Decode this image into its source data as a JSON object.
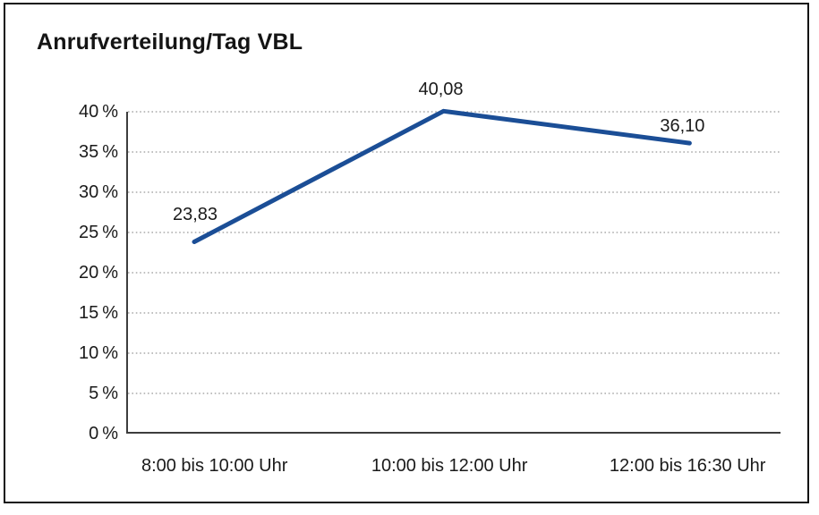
{
  "chart_data": {
    "type": "line",
    "title": "Anrufverteilung/Tag VBL",
    "categories": [
      "8:00 bis 10:00 Uhr",
      "10:00 bis 12:00 Uhr",
      "12:00 bis 16:30 Uhr"
    ],
    "values": [
      23.83,
      40.08,
      36.1
    ],
    "value_labels": [
      "23,83",
      "40,08",
      "36,10"
    ],
    "series_name": "Anrufverteilung",
    "xlabel": "",
    "ylabel": "",
    "ylim": [
      0,
      40
    ],
    "y_tick_step": 5,
    "y_tick_labels": [
      "0 %",
      "5 %",
      "10 %",
      "15 %",
      "20 %",
      "25 %",
      "30 %",
      "35 %",
      "40 %"
    ],
    "grid": "horizontal-dotted",
    "legend": "none",
    "colors": {
      "line": "#1B4E96",
      "grid": "#999999",
      "axis": "#3d3d3d",
      "text": "#1a1a1a",
      "border": "#111111",
      "background": "#ffffff"
    }
  }
}
